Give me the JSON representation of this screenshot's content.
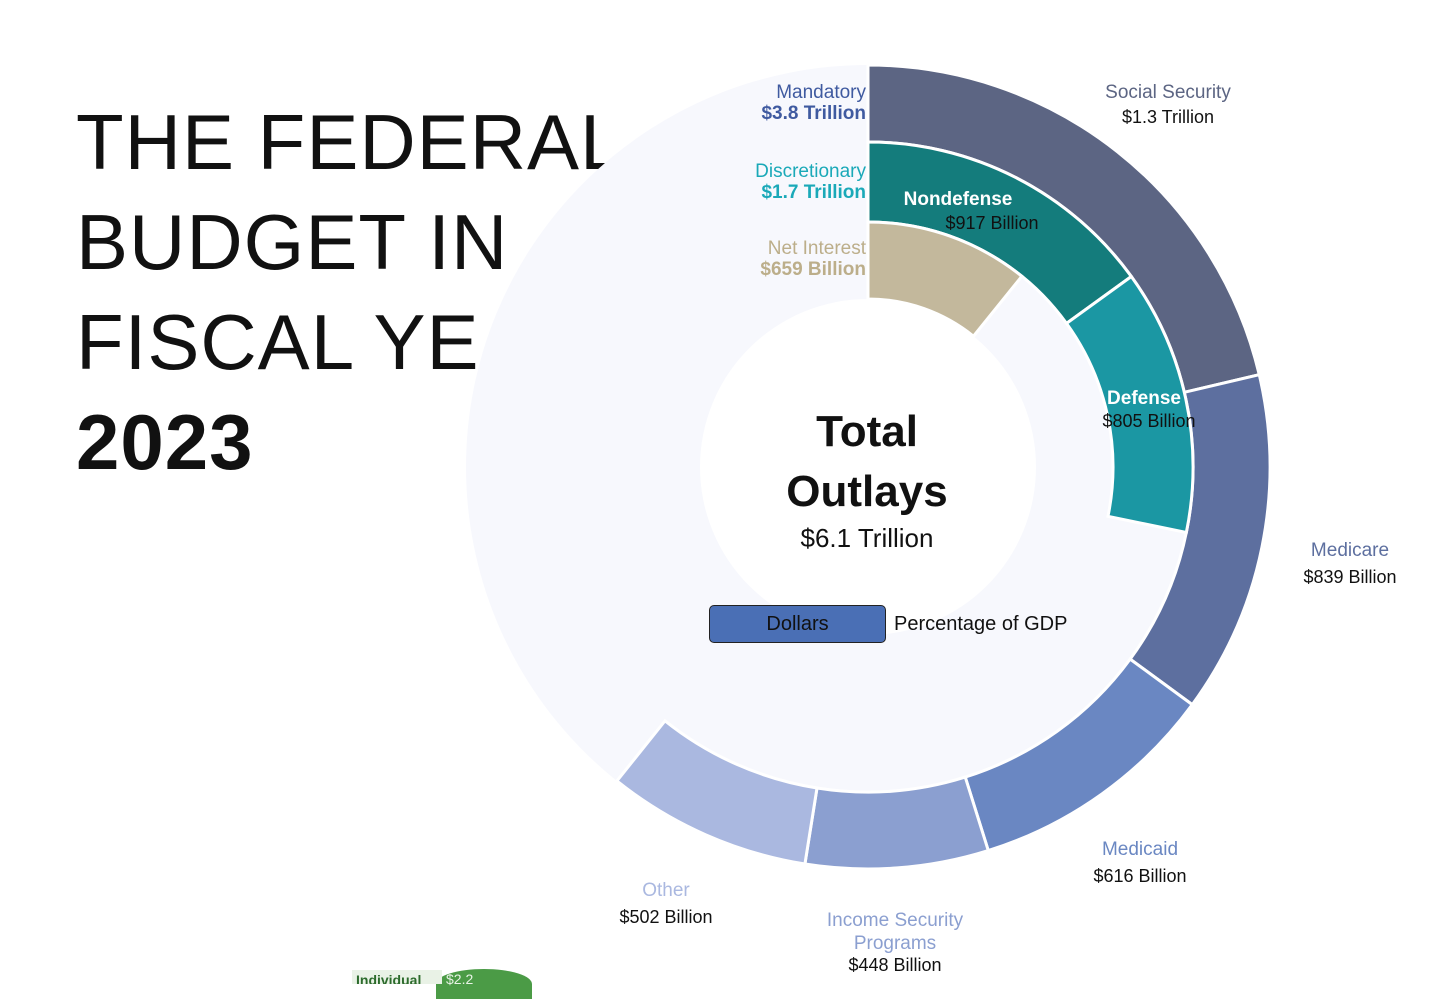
{
  "title": {
    "line1": "THE FEDERAL",
    "line2": "BUDGET IN",
    "line3": "FISCAL YEAR",
    "year": "2023"
  },
  "center": {
    "label1": "Total",
    "label2": "Outlays",
    "amount": "$6.1 Trillion"
  },
  "toggle": {
    "active": "Dollars",
    "inactive": "Percentage of GDP"
  },
  "chart_data": {
    "type": "pie",
    "title": "Total Outlays $6.1 Trillion",
    "total_trillions": 6.1,
    "inner_ring": [
      {
        "name": "Nondefense",
        "label": "$917 Billion",
        "value_billions": 917,
        "color": "#147c7c",
        "group": "Discretionary"
      },
      {
        "name": "Defense",
        "label": "$805 Billion",
        "value_billions": 805,
        "color": "#1b97a3",
        "group": "Discretionary"
      },
      {
        "name": "Net Interest",
        "label": "$659 Billion",
        "value_billions": 659,
        "color": "#c3b89c",
        "group": "Net Interest"
      }
    ],
    "outer_ring": [
      {
        "name": "Social Security",
        "label": "$1.3 Trillion",
        "value_billions": 1300,
        "color": "#5c6583",
        "group": "Mandatory"
      },
      {
        "name": "Medicare",
        "label": "$839 Billion",
        "value_billions": 839,
        "color": "#5d6f9f",
        "group": "Mandatory"
      },
      {
        "name": "Medicaid",
        "label": "$616 Billion",
        "value_billions": 616,
        "color": "#6a87c2",
        "group": "Mandatory"
      },
      {
        "name": "Income Security Programs",
        "label": "$448 Billion",
        "value_billions": 448,
        "color": "#8b9fd0",
        "group": "Mandatory"
      },
      {
        "name": "Other",
        "label": "$502 Billion",
        "value_billions": 502,
        "color": "#aab8e0",
        "group": "Mandatory"
      }
    ],
    "groups": [
      {
        "name": "Mandatory",
        "label": "$3.8 Trillion",
        "color": "#3f5aa0"
      },
      {
        "name": "Discretionary",
        "label": "$1.7 Trillion",
        "color": "#1aa9b8"
      },
      {
        "name": "Net Interest",
        "label": "$659 Billion",
        "color": "#bcae8a"
      }
    ]
  },
  "bottom_peek": {
    "label": "Individual",
    "value": "$2.2"
  },
  "colors": {
    "ring_background": "#f7f8fd",
    "center_fill": "#ffffff"
  }
}
